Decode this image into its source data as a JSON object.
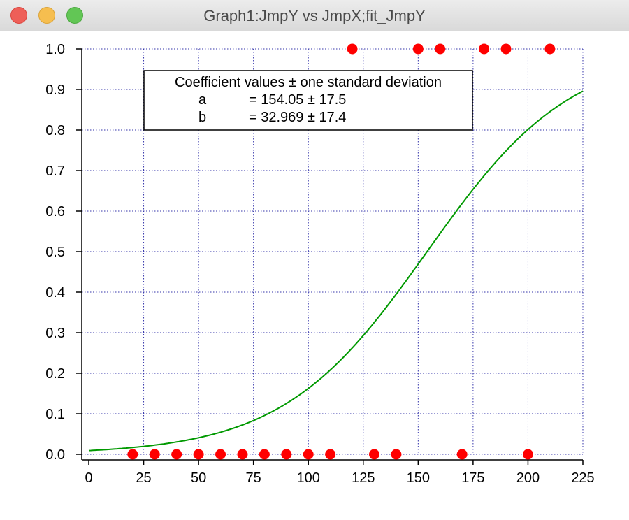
{
  "window": {
    "title": "Graph1:JmpY vs JmpX;fit_JmpY",
    "buttons": [
      "close",
      "minimize",
      "zoom"
    ]
  },
  "chart_data": {
    "type": "scatter",
    "title": "",
    "xlabel": "",
    "ylabel": "",
    "xlim": [
      -2,
      225
    ],
    "ylim": [
      -0.015,
      1.0
    ],
    "grid": true,
    "xticks": [
      0,
      25,
      50,
      75,
      100,
      125,
      150,
      175,
      200,
      225
    ],
    "yticks": [
      0.0,
      0.1,
      0.2,
      0.3,
      0.4,
      0.5,
      0.6,
      0.7,
      0.8,
      0.9,
      1.0
    ],
    "ytick_labels": [
      "0.0",
      "0.1",
      "0.2",
      "0.3",
      "0.4",
      "0.5",
      "0.6",
      "0.7",
      "0.8",
      "0.9",
      "1.0"
    ],
    "series": [
      {
        "kind": "scatter",
        "color": "#ff0000",
        "x": [
          20,
          30,
          40,
          50,
          60,
          70,
          80,
          90,
          100,
          110,
          120,
          130,
          140,
          150,
          160,
          170,
          180,
          190,
          200,
          210
        ],
        "y": [
          0,
          0,
          0,
          0,
          0,
          0,
          0,
          0,
          0,
          0,
          1,
          0,
          0,
          1,
          1,
          0,
          1,
          1,
          0,
          1
        ]
      },
      {
        "kind": "line",
        "color": "#009900",
        "function": "logistic",
        "x_range": [
          0,
          225
        ]
      }
    ],
    "annotation": {
      "heading": "Coefficient values ± one standard deviation",
      "rows": [
        {
          "name": "a",
          "value": "= 154.05 ± 17.5",
          "num": 154.05
        },
        {
          "name": "b",
          "value": "= 32.969 ± 17.4",
          "num": 32.969
        }
      ]
    },
    "colors": {
      "grid": "#3333aa",
      "axis": "#000000"
    }
  }
}
